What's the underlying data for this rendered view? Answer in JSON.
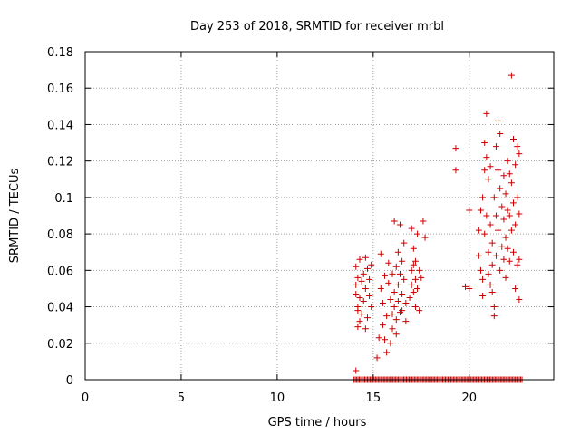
{
  "chart_data": {
    "type": "scatter",
    "title": "Day 253 of 2018, SRMTID for receiver mrbl",
    "xlabel": "GPS time / hours",
    "ylabel": "SRMTID / TECUs",
    "xlim": [
      0,
      24.4
    ],
    "ylim": [
      0,
      0.18
    ],
    "xticks": [
      0,
      5,
      10,
      15,
      20
    ],
    "xtick_labels": [
      "0",
      "5",
      "10",
      "15",
      "20"
    ],
    "yticks": [
      0,
      0.02,
      0.04,
      0.06,
      0.08,
      0.1,
      0.12,
      0.14,
      0.16,
      0.18
    ],
    "ytick_labels": [
      "0",
      "0.02",
      "0.04",
      "0.06",
      "0.08",
      "0.1",
      "0.12",
      "0.14",
      "0.16",
      "0.18"
    ],
    "grid": true,
    "marker": "+",
    "series": [
      {
        "name": "SRMTID",
        "color": "#cc0000",
        "points": [
          [
            14.1,
            0.005
          ],
          [
            14.1,
            0.062
          ],
          [
            14.1,
            0.052
          ],
          [
            14.1,
            0.047
          ],
          [
            14.2,
            0.04
          ],
          [
            14.2,
            0.038
          ],
          [
            14.2,
            0.056
          ],
          [
            14.3,
            0.066
          ],
          [
            14.3,
            0.045
          ],
          [
            14.3,
            0.032
          ],
          [
            14.4,
            0.036
          ],
          [
            14.4,
            0.054
          ],
          [
            14.5,
            0.043
          ],
          [
            14.5,
            0.058
          ],
          [
            14.6,
            0.067
          ],
          [
            14.6,
            0.05
          ],
          [
            14.7,
            0.061
          ],
          [
            14.7,
            0.034
          ],
          [
            14.8,
            0.046
          ],
          [
            14.8,
            0.055
          ],
          [
            14.9,
            0.04
          ],
          [
            14.9,
            0.063
          ],
          [
            14.2,
            0.029
          ],
          [
            14.6,
            0.028
          ],
          [
            15.2,
            0.012
          ],
          [
            15.3,
            0.023
          ],
          [
            15.4,
            0.05
          ],
          [
            15.4,
            0.069
          ],
          [
            15.5,
            0.042
          ],
          [
            15.5,
            0.03
          ],
          [
            15.6,
            0.057
          ],
          [
            15.6,
            0.022
          ],
          [
            15.7,
            0.035
          ],
          [
            15.7,
            0.015
          ],
          [
            15.8,
            0.064
          ],
          [
            15.8,
            0.053
          ],
          [
            15.9,
            0.02
          ],
          [
            15.9,
            0.044
          ],
          [
            16.0,
            0.058
          ],
          [
            16.0,
            0.036
          ],
          [
            16.0,
            0.028
          ],
          [
            16.1,
            0.087
          ],
          [
            16.1,
            0.048
          ],
          [
            16.1,
            0.04
          ],
          [
            16.2,
            0.062
          ],
          [
            16.2,
            0.033
          ],
          [
            16.2,
            0.025
          ],
          [
            16.3,
            0.07
          ],
          [
            16.3,
            0.052
          ],
          [
            16.3,
            0.043
          ],
          [
            16.4,
            0.085
          ],
          [
            16.4,
            0.058
          ],
          [
            16.4,
            0.037
          ],
          [
            16.5,
            0.065
          ],
          [
            16.5,
            0.047
          ],
          [
            16.5,
            0.038
          ],
          [
            16.6,
            0.075
          ],
          [
            16.6,
            0.055
          ],
          [
            16.7,
            0.042
          ],
          [
            16.7,
            0.032
          ],
          [
            16.9,
            0.045
          ],
          [
            17.0,
            0.083
          ],
          [
            17.0,
            0.06
          ],
          [
            17.0,
            0.052
          ],
          [
            17.1,
            0.072
          ],
          [
            17.1,
            0.063
          ],
          [
            17.1,
            0.048
          ],
          [
            17.2,
            0.065
          ],
          [
            17.2,
            0.055
          ],
          [
            17.2,
            0.04
          ],
          [
            17.3,
            0.08
          ],
          [
            17.3,
            0.05
          ],
          [
            17.4,
            0.038
          ],
          [
            17.4,
            0.06
          ],
          [
            17.6,
            0.087
          ],
          [
            17.7,
            0.078
          ],
          [
            17.5,
            0.056
          ],
          [
            19.3,
            0.127
          ],
          [
            19.3,
            0.115
          ],
          [
            19.8,
            0.051
          ],
          [
            20.0,
            0.093
          ],
          [
            20.0,
            0.05
          ],
          [
            20.5,
            0.082
          ],
          [
            20.5,
            0.068
          ],
          [
            20.6,
            0.06
          ],
          [
            20.6,
            0.093
          ],
          [
            20.7,
            0.1
          ],
          [
            20.7,
            0.055
          ],
          [
            20.7,
            0.046
          ],
          [
            20.8,
            0.13
          ],
          [
            20.8,
            0.115
          ],
          [
            20.8,
            0.08
          ],
          [
            20.9,
            0.146
          ],
          [
            20.9,
            0.122
          ],
          [
            20.9,
            0.09
          ],
          [
            21.0,
            0.11
          ],
          [
            21.0,
            0.07
          ],
          [
            21.0,
            0.058
          ],
          [
            21.1,
            0.117
          ],
          [
            21.1,
            0.085
          ],
          [
            21.1,
            0.052
          ],
          [
            21.2,
            0.075
          ],
          [
            21.2,
            0.063
          ],
          [
            21.2,
            0.048
          ],
          [
            21.3,
            0.1
          ],
          [
            21.3,
            0.04
          ],
          [
            21.3,
            0.035
          ],
          [
            21.4,
            0.128
          ],
          [
            21.4,
            0.09
          ],
          [
            21.4,
            0.068
          ],
          [
            21.5,
            0.142
          ],
          [
            21.5,
            0.115
          ],
          [
            21.5,
            0.082
          ],
          [
            21.6,
            0.135
          ],
          [
            21.6,
            0.105
          ],
          [
            21.6,
            0.06
          ],
          [
            21.7,
            0.095
          ],
          [
            21.7,
            0.073
          ],
          [
            21.8,
            0.112
          ],
          [
            21.8,
            0.088
          ],
          [
            21.8,
            0.066
          ],
          [
            21.9,
            0.102
          ],
          [
            21.9,
            0.078
          ],
          [
            21.9,
            0.056
          ],
          [
            22.0,
            0.12
          ],
          [
            22.0,
            0.093
          ],
          [
            22.0,
            0.072
          ],
          [
            22.1,
            0.113
          ],
          [
            22.1,
            0.09
          ],
          [
            22.1,
            0.065
          ],
          [
            22.2,
            0.167
          ],
          [
            22.2,
            0.108
          ],
          [
            22.2,
            0.082
          ],
          [
            22.3,
            0.132
          ],
          [
            22.3,
            0.097
          ],
          [
            22.3,
            0.07
          ],
          [
            22.4,
            0.118
          ],
          [
            22.4,
            0.085
          ],
          [
            22.4,
            0.05
          ],
          [
            22.5,
            0.128
          ],
          [
            22.5,
            0.1
          ],
          [
            22.5,
            0.063
          ],
          [
            22.6,
            0.124
          ],
          [
            22.6,
            0.091
          ],
          [
            22.6,
            0.044
          ],
          [
            22.6,
            0.066
          ]
        ]
      },
      {
        "name": "SRMTID zero values",
        "color": "#cc0000",
        "x_range": [
          14.0,
          22.8
        ],
        "x_step": 0.07,
        "y": 0
      }
    ]
  }
}
